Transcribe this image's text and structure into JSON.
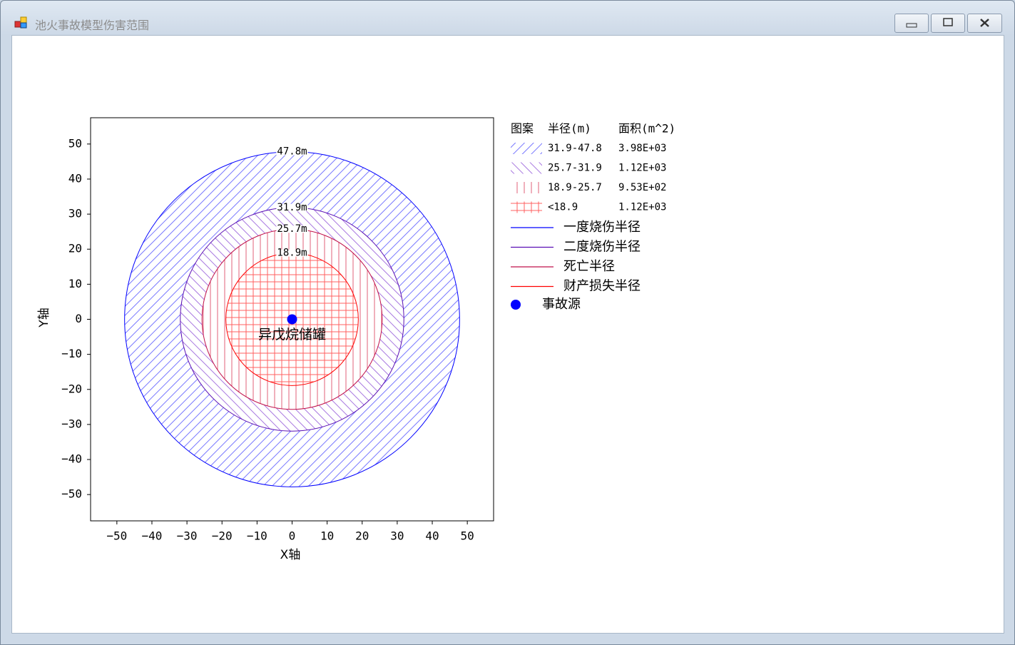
{
  "window": {
    "title": "池火事故模型伤害范围"
  },
  "chart_data": {
    "type": "circles",
    "xlabel": "X轴",
    "ylabel": "Y轴",
    "xlim": [
      -57.5,
      57.5
    ],
    "ylim": [
      -57.5,
      57.5
    ],
    "xticks": [
      {
        "value": -50,
        "label": "−50"
      },
      {
        "value": -40,
        "label": "−40"
      },
      {
        "value": -30,
        "label": "−30"
      },
      {
        "value": -20,
        "label": "−20"
      },
      {
        "value": -10,
        "label": "−10"
      },
      0,
      10,
      20,
      30,
      40,
      50
    ],
    "yticks": [
      {
        "value": -50,
        "label": "−50"
      },
      {
        "value": -40,
        "label": "−40"
      },
      {
        "value": -30,
        "label": "−30"
      },
      {
        "value": -20,
        "label": "−20"
      },
      {
        "value": -10,
        "label": "−10"
      },
      0,
      10,
      20,
      30,
      40,
      50
    ],
    "grid": false,
    "series": [
      {
        "name": "一度烧伤半径",
        "color": "#0000ff",
        "values": [
          47.8
        ],
        "value_labels": [
          "47.8m"
        ]
      },
      {
        "name": "二度烧伤半径",
        "color": "#5a0fb4",
        "values": [
          31.9
        ],
        "value_labels": [
          "31.9m"
        ]
      },
      {
        "name": "死亡半径",
        "color": "#c0104a",
        "values": [
          25.7
        ],
        "value_labels": [
          "25.7m"
        ]
      },
      {
        "name": "财产损失半径",
        "color": "#ff0000",
        "values": [
          18.9
        ],
        "value_labels": [
          "18.9m"
        ]
      }
    ],
    "zones": {
      "header": [
        "图案",
        "半径(m)",
        "面积(m^2)"
      ],
      "rows": [
        {
          "hatch": "/",
          "color": "#7878ff",
          "range": "31.9-47.8",
          "area": "3.98E+03"
        },
        {
          "hatch": "\\",
          "color": "#a878e0",
          "range": "25.7-31.9",
          "area": "1.12E+03"
        },
        {
          "hatch": "|",
          "color": "#e0607a",
          "range": "18.9-25.7",
          "area": "9.53E+02"
        },
        {
          "hatch": "+",
          "color": "#ff6060",
          "range": "<18.9",
          "area": "1.12E+03"
        }
      ]
    },
    "source": {
      "name": "事故源",
      "color": "#0000ff",
      "x": 0,
      "y": 0,
      "annotation": "异戊烷储罐"
    }
  }
}
